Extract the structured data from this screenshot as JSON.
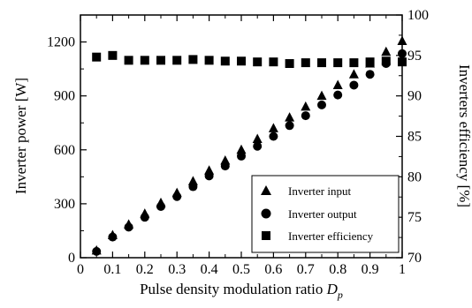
{
  "chart_data": {
    "type": "scatter",
    "title": "",
    "xlabel": "Pulse density modulation ratio",
    "xlabel_symbol": "D",
    "xlabel_subscript": "p",
    "ylabel_left": "Inverter power  [W]",
    "ylabel_right": "Inverters efficiency  [%]",
    "xlim": [
      0,
      1
    ],
    "ylim_left": [
      0,
      1350
    ],
    "ylim_right": [
      70,
      100
    ],
    "x_ticks": [
      "0",
      "0.1",
      "0.2",
      "0.3",
      "0.4",
      "0.5",
      "0.6",
      "0.7",
      "0.8",
      "0.9",
      "1"
    ],
    "y_ticks_left": [
      "0",
      "300",
      "600",
      "900",
      "1200"
    ],
    "y_ticks_right": [
      "70",
      "75",
      "80",
      "85",
      "90",
      "95",
      "100"
    ],
    "grid": false,
    "legend_position": "bottom-right",
    "x": [
      0.05,
      0.1,
      0.15,
      0.2,
      0.25,
      0.3,
      0.35,
      0.4,
      0.45,
      0.5,
      0.55,
      0.6,
      0.65,
      0.7,
      0.75,
      0.8,
      0.85,
      0.9,
      0.95,
      1.0
    ],
    "series": [
      {
        "name": "Inverter input",
        "marker": "triangle",
        "axis": "left",
        "values": [
          40,
          125,
          185,
          245,
          305,
          360,
          425,
          485,
          540,
          600,
          660,
          720,
          780,
          840,
          900,
          960,
          1020,
          1080,
          1145,
          1205
        ]
      },
      {
        "name": "Inverter output",
        "marker": "circle",
        "axis": "left",
        "values": [
          35,
          115,
          170,
          225,
          285,
          340,
          395,
          455,
          510,
          565,
          620,
          675,
          735,
          790,
          850,
          905,
          960,
          1020,
          1080,
          1135
        ]
      },
      {
        "name": "Inverter efficiency",
        "marker": "square",
        "axis": "right",
        "values": [
          94.8,
          95.0,
          94.4,
          94.4,
          94.4,
          94.4,
          94.5,
          94.4,
          94.3,
          94.3,
          94.2,
          94.2,
          94.0,
          94.1,
          94.1,
          94.1,
          94.1,
          94.2,
          94.3,
          94.2
        ]
      }
    ]
  }
}
